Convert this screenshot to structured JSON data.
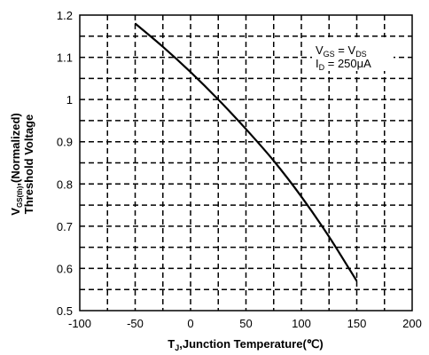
{
  "chart_data": {
    "type": "line",
    "title": "",
    "xlabel": {
      "main": "T",
      "sub": "J",
      "rest": ",Junction Temperature(℃)"
    },
    "ylabel": {
      "line1_main": "V",
      "line1_sub": "GS(th)",
      "line1_rest": ",(Normalized)",
      "line2": "Threshold Voltage"
    },
    "xlim": [
      -100,
      200
    ],
    "ylim": [
      0.5,
      1.2
    ],
    "xticks": [
      "-100",
      "-50",
      "0",
      "50",
      "100",
      "150",
      "200"
    ],
    "yticks": [
      "0.5",
      "0.6",
      "0.7",
      "0.8",
      "0.9",
      "1",
      "1.1",
      "1.2"
    ],
    "grid": true,
    "grid_style": "dashed",
    "series": [
      {
        "x": [
          -50,
          -25,
          0,
          25,
          50,
          75,
          100,
          125,
          150
        ],
        "y": [
          1.18,
          1.125,
          1.065,
          1.0,
          0.93,
          0.855,
          0.77,
          0.675,
          0.57
        ]
      }
    ],
    "annotation": {
      "line1": {
        "a_main": "V",
        "a_sub": "GS",
        "eq": " = ",
        "b_main": "V",
        "b_sub": "DS"
      },
      "line2": {
        "main": "I",
        "sub": "D",
        "rest": " = 250μA"
      }
    },
    "colors": {
      "line": "#000000",
      "grid": "#000000",
      "background": "#ffffff"
    }
  }
}
